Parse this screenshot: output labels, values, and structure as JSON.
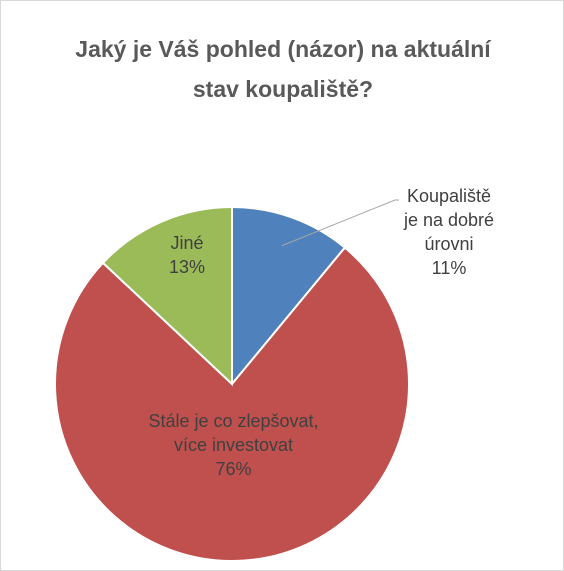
{
  "chart_data": {
    "type": "pie",
    "title": "Jaký je Váš pohled (názor) na aktuální stav koupaliště?",
    "categories": [
      "Koupaliště je na dobré úrovni",
      "Stále je co zlepšovat, více investovat",
      "Jiné"
    ],
    "values": [
      11,
      76,
      13
    ],
    "value_labels": [
      "11%",
      "76%",
      "13%"
    ],
    "colors": [
      "#4f81bd",
      "#c0504d",
      "#9bbb59"
    ]
  }
}
